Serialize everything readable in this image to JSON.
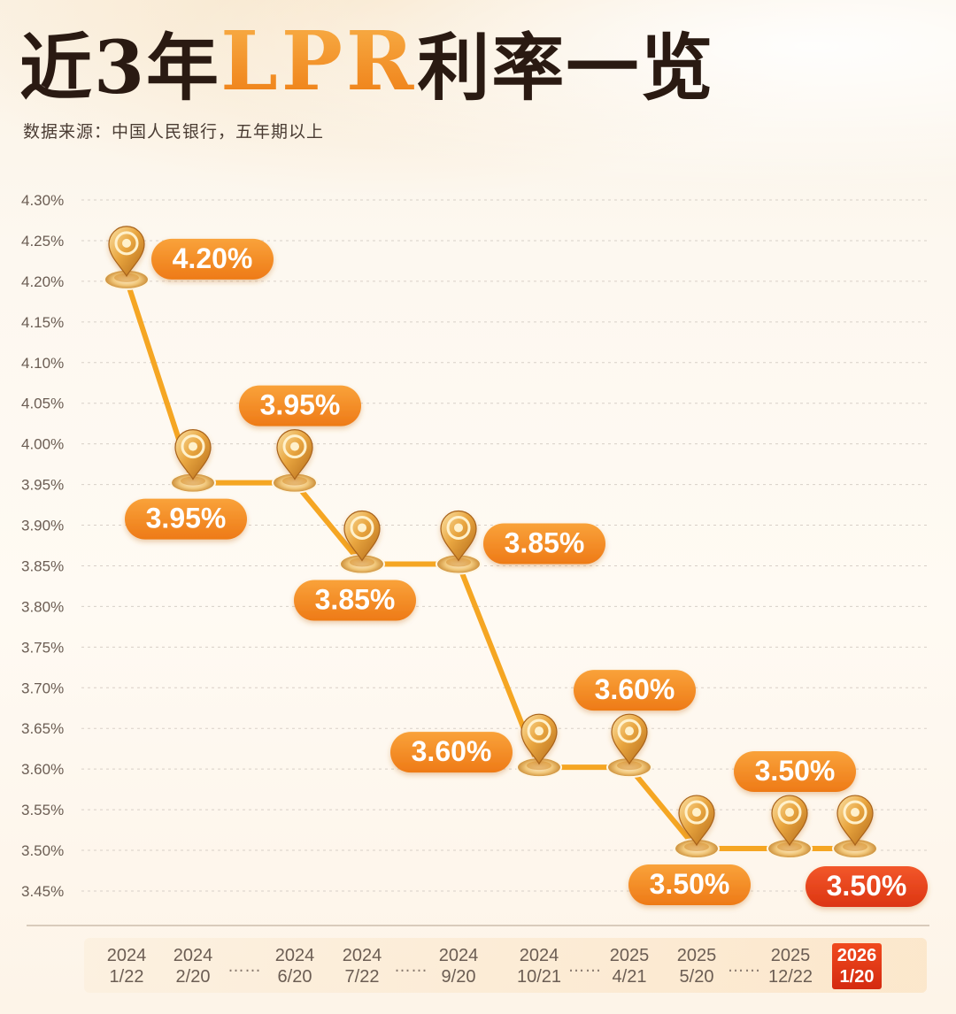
{
  "header": {
    "title_pre": "近3年",
    "title_accent": "LPR",
    "title_post": "利率一览",
    "subtitle": "数据来源：中国人民银行，五年期以上"
  },
  "colors": {
    "line": "#f5a623",
    "label_fill": "#f28a1f",
    "label_current": "#e63c1a",
    "pin_gold": "#e9a640",
    "grid": "#d8d0c8",
    "tick_text": "#6b5d53"
  },
  "chart_data": {
    "type": "line",
    "yticks": [
      "4.30%",
      "4.25%",
      "4.20%",
      "4.15%",
      "4.10%",
      "4.05%",
      "4.00%",
      "3.95%",
      "3.90%",
      "3.85%",
      "3.80%",
      "3.75%",
      "3.70%",
      "3.65%",
      "3.60%",
      "3.55%",
      "3.50%",
      "3.45%"
    ],
    "ylim": [
      3.45,
      4.3
    ],
    "grid": true,
    "categories": [
      {
        "year": "2024",
        "date": "1/22"
      },
      {
        "year": "2024",
        "date": "2/20"
      },
      {
        "year": "2024",
        "date": "6/20"
      },
      {
        "year": "2024",
        "date": "7/22"
      },
      {
        "year": "2024",
        "date": "9/20"
      },
      {
        "year": "2024",
        "date": "10/21"
      },
      {
        "year": "2025",
        "date": "4/21"
      },
      {
        "year": "2025",
        "date": "5/20"
      },
      {
        "year": "2025",
        "date": "12/22"
      },
      {
        "year": "2026",
        "date": "1/20"
      }
    ],
    "gap_marker": "……",
    "gaps_after": [
      1,
      3,
      5,
      7
    ],
    "values": [
      4.2,
      3.95,
      3.95,
      3.85,
      3.85,
      3.6,
      3.6,
      3.5,
      3.5,
      3.5
    ],
    "labels": [
      "4.20%",
      "3.95%",
      "3.95%",
      "3.85%",
      "3.85%",
      "3.60%",
      "3.60%",
      "3.50%",
      "3.50%",
      "3.50%"
    ],
    "highlight_index": 9
  }
}
